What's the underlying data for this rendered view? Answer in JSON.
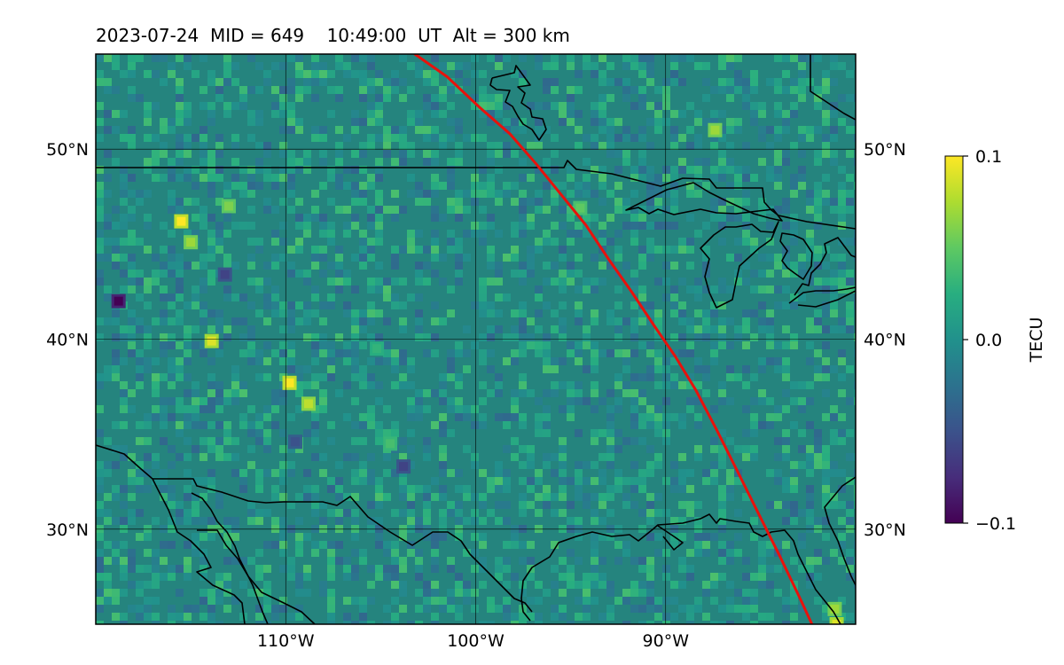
{
  "title": {
    "date": "2023-07-24",
    "mid": "MID = 649",
    "time": "10:49:00",
    "time_unit": "UT",
    "altitude": "Alt = 300 km",
    "text": "2023-07-24  MID = 649    10:49:00  UT  Alt = 300 km"
  },
  "map": {
    "lon_range": [
      -120,
      -80
    ],
    "lat_range": [
      25,
      55
    ],
    "lon_ticks": [
      {
        "value": -110,
        "label": "110°W"
      },
      {
        "value": -100,
        "label": "100°W"
      },
      {
        "value": -90,
        "label": "90°W"
      }
    ],
    "lat_ticks": [
      {
        "value": 30,
        "label": "30°N"
      },
      {
        "value": 40,
        "label": "40°N"
      },
      {
        "value": 50,
        "label": "50°N"
      }
    ],
    "grid": true,
    "coastline_color": "#000000",
    "track_color": "#e8120c"
  },
  "colorbar": {
    "label": "TECU",
    "colormap": "viridis",
    "min": -0.1,
    "max": 0.1,
    "ticks": [
      {
        "value": 0.1,
        "label": "0.1"
      },
      {
        "value": 0.0,
        "label": "0.0"
      },
      {
        "value": -0.1,
        "label": "−0.1"
      }
    ]
  },
  "satellite_track": [
    [
      -103.2,
      55
    ],
    [
      -101.5,
      53.8
    ],
    [
      -99.8,
      52.2
    ],
    [
      -98.2,
      50.8
    ],
    [
      -96.8,
      49.2
    ],
    [
      -95.5,
      47.6
    ],
    [
      -94.2,
      46.0
    ],
    [
      -93.0,
      44.2
    ],
    [
      -91.8,
      42.5
    ],
    [
      -90.6,
      40.7
    ],
    [
      -89.5,
      39.1
    ],
    [
      -88.4,
      37.3
    ],
    [
      -87.3,
      35.2
    ],
    [
      -86.2,
      33.0
    ],
    [
      -85.1,
      30.8
    ],
    [
      -84.0,
      28.6
    ],
    [
      -82.9,
      26.3
    ],
    [
      -82.3,
      25
    ]
  ],
  "anomalies": [
    {
      "lon": -115.5,
      "lat": 46.2,
      "v": 0.1
    },
    {
      "lon": -115.0,
      "lat": 45.1,
      "v": 0.07
    },
    {
      "lon": -113.0,
      "lat": 47.0,
      "v": 0.06
    },
    {
      "lon": -113.9,
      "lat": 39.9,
      "v": 0.09
    },
    {
      "lon": -109.8,
      "lat": 37.7,
      "v": 0.1
    },
    {
      "lon": -108.8,
      "lat": 36.6,
      "v": 0.08
    },
    {
      "lon": -118.8,
      "lat": 42.0,
      "v": -0.1
    },
    {
      "lon": -113.2,
      "lat": 43.4,
      "v": -0.06
    },
    {
      "lon": -109.5,
      "lat": 34.6,
      "v": -0.05
    },
    {
      "lon": -103.8,
      "lat": 33.3,
      "v": -0.06
    },
    {
      "lon": -87.4,
      "lat": 51.0,
      "v": 0.07
    },
    {
      "lon": -94.5,
      "lat": 46.9,
      "v": 0.05
    },
    {
      "lon": -81.1,
      "lat": 25.8,
      "v": 0.07
    },
    {
      "lon": -81.0,
      "lat": 25.0,
      "v": 0.09
    },
    {
      "lon": -104.5,
      "lat": 34.5,
      "v": 0.04
    },
    {
      "lon": -105.2,
      "lat": 39.5,
      "v": 0.03
    }
  ]
}
